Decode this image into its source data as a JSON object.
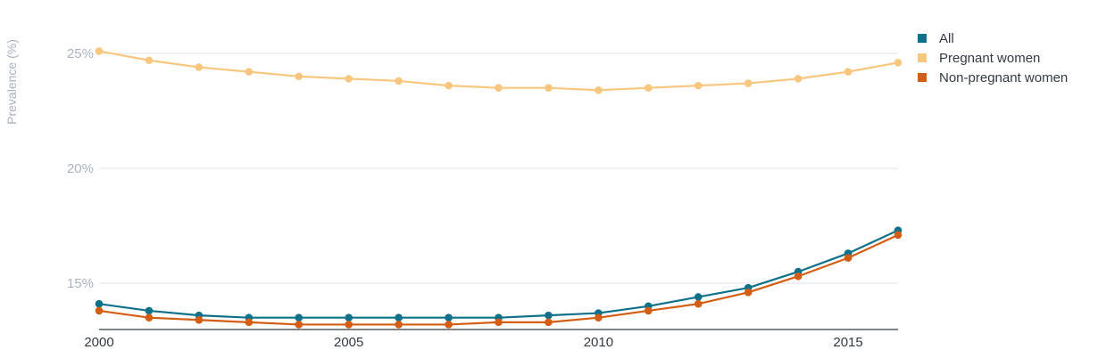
{
  "chart_data": {
    "type": "line",
    "ylabel": "Prevalence (%)",
    "xlabel": "",
    "xlim": [
      2000,
      2016
    ],
    "ylim": [
      13,
      26
    ],
    "x_ticks": [
      2000,
      2005,
      2010,
      2015
    ],
    "x_tick_labels": [
      "2000",
      "2005",
      "2010",
      "2015"
    ],
    "y_ticks": [
      15,
      20,
      25
    ],
    "y_tick_labels": [
      "15%",
      "20%",
      "25%"
    ],
    "grid": true,
    "legend_position": "top-right",
    "x": [
      2000,
      2001,
      2002,
      2003,
      2004,
      2005,
      2006,
      2007,
      2008,
      2009,
      2010,
      2011,
      2012,
      2013,
      2014,
      2015,
      2016
    ],
    "series": [
      {
        "name": "All",
        "color": "#0f7189",
        "values": [
          14.1,
          13.8,
          13.6,
          13.5,
          13.5,
          13.5,
          13.5,
          13.5,
          13.5,
          13.6,
          13.7,
          14.0,
          14.4,
          14.8,
          15.5,
          16.3,
          17.3
        ]
      },
      {
        "name": "Pregnant women",
        "color": "#f7c77f",
        "values": [
          25.1,
          24.7,
          24.4,
          24.2,
          24.0,
          23.9,
          23.8,
          23.6,
          23.5,
          23.5,
          23.4,
          23.5,
          23.6,
          23.7,
          23.9,
          24.2,
          24.6
        ]
      },
      {
        "name": "Non-pregnant women",
        "color": "#d45d14",
        "values": [
          13.8,
          13.5,
          13.4,
          13.3,
          13.2,
          13.2,
          13.2,
          13.2,
          13.3,
          13.3,
          13.5,
          13.8,
          14.1,
          14.6,
          15.3,
          16.1,
          17.1
        ]
      }
    ]
  }
}
